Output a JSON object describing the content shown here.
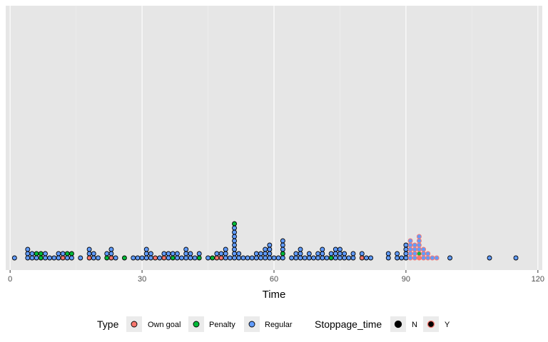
{
  "chart_data": {
    "type": "scatter",
    "subtype": "dotplot",
    "xlabel": "Time",
    "ylabel": "",
    "xlim": [
      -1,
      121
    ],
    "x_ticks": [
      0,
      30,
      60,
      90,
      120
    ],
    "grid": true,
    "theme_colors": {
      "panel_bg": "#e6e6e6",
      "grid_major": "#ffffff",
      "grid_minor": "#f2f2f2",
      "dot_stroke": "#000000",
      "stoppage_stroke": "#f8766d"
    },
    "legend_position": "bottom",
    "legends": [
      {
        "title": "Type",
        "entries": [
          {
            "label": "Own goal",
            "color": "#f8766d"
          },
          {
            "label": "Penalty",
            "color": "#00ba38"
          },
          {
            "label": "Regular",
            "color": "#619cff"
          }
        ]
      },
      {
        "title": "Stoppage_time",
        "entries": [
          {
            "label": "N",
            "fill": "#000000",
            "stroke": "#000000"
          },
          {
            "label": "Y",
            "fill": "#000000",
            "stroke": "#f8766d"
          }
        ]
      }
    ],
    "stacks": [
      {
        "x": 1,
        "dots": [
          "R"
        ]
      },
      {
        "x": 4,
        "dots": [
          "R",
          "R",
          "R"
        ]
      },
      {
        "x": 5,
        "dots": [
          "R",
          "R"
        ]
      },
      {
        "x": 6,
        "dots": [
          "R",
          "P"
        ]
      },
      {
        "x": 7,
        "dots": [
          "P",
          "P"
        ]
      },
      {
        "x": 8,
        "dots": [
          "R",
          "R"
        ]
      },
      {
        "x": 9,
        "dots": [
          "R"
        ]
      },
      {
        "x": 10,
        "dots": [
          "R"
        ]
      },
      {
        "x": 11,
        "dots": [
          "R",
          "R"
        ]
      },
      {
        "x": 12,
        "dots": [
          "O",
          "R"
        ]
      },
      {
        "x": 13,
        "dots": [
          "R",
          "P"
        ]
      },
      {
        "x": 14,
        "dots": [
          "R",
          "P"
        ]
      },
      {
        "x": 16,
        "dots": [
          "R"
        ]
      },
      {
        "x": 18,
        "dots": [
          "O",
          "R",
          "R"
        ]
      },
      {
        "x": 19,
        "dots": [
          "R",
          "R"
        ]
      },
      {
        "x": 20,
        "dots": [
          "R"
        ]
      },
      {
        "x": 22,
        "dots": [
          "P",
          "R"
        ]
      },
      {
        "x": 23,
        "dots": [
          "O",
          "R",
          "R"
        ]
      },
      {
        "x": 24,
        "dots": [
          "R"
        ]
      },
      {
        "x": 26,
        "dots": [
          "P"
        ]
      },
      {
        "x": 28,
        "dots": [
          "R"
        ]
      },
      {
        "x": 29,
        "dots": [
          "R"
        ]
      },
      {
        "x": 30,
        "dots": [
          "R"
        ]
      },
      {
        "x": 31,
        "dots": [
          "R",
          "R",
          "R"
        ]
      },
      {
        "x": 32,
        "dots": [
          "R",
          "R"
        ]
      },
      {
        "x": 33,
        "dots": [
          "O"
        ]
      },
      {
        "x": 34,
        "dots": [
          "R"
        ]
      },
      {
        "x": 35,
        "dots": [
          "O",
          "R"
        ]
      },
      {
        "x": 36,
        "dots": [
          "R",
          "R"
        ]
      },
      {
        "x": 37,
        "dots": [
          "P",
          "R"
        ]
      },
      {
        "x": 38,
        "dots": [
          "R",
          "R"
        ]
      },
      {
        "x": 39,
        "dots": [
          "R"
        ]
      },
      {
        "x": 40,
        "dots": [
          "R",
          "R",
          "R"
        ]
      },
      {
        "x": 41,
        "dots": [
          "R",
          "R"
        ]
      },
      {
        "x": 42,
        "dots": [
          "R"
        ]
      },
      {
        "x": 43,
        "dots": [
          "P",
          "R"
        ]
      },
      {
        "x": 45,
        "dots": [
          "R"
        ]
      },
      {
        "x": 46,
        "dots": [
          "P"
        ]
      },
      {
        "x": 47,
        "dots": [
          "O",
          "R"
        ]
      },
      {
        "x": 48,
        "dots": [
          "O",
          "R"
        ]
      },
      {
        "x": 49,
        "dots": [
          "R",
          "R",
          "R"
        ]
      },
      {
        "x": 50,
        "dots": [
          "R"
        ]
      },
      {
        "x": 51,
        "dots": [
          "R",
          "R",
          "R",
          "R",
          "R",
          "R",
          "R",
          "R",
          "P"
        ]
      },
      {
        "x": 52,
        "dots": [
          "R",
          "R"
        ]
      },
      {
        "x": 53,
        "dots": [
          "R"
        ]
      },
      {
        "x": 54,
        "dots": [
          "R"
        ]
      },
      {
        "x": 55,
        "dots": [
          "R"
        ]
      },
      {
        "x": 56,
        "dots": [
          "R",
          "R"
        ]
      },
      {
        "x": 57,
        "dots": [
          "R",
          "R"
        ]
      },
      {
        "x": 58,
        "dots": [
          "R",
          "R",
          "R"
        ]
      },
      {
        "x": 59,
        "dots": [
          "R",
          "R",
          "R",
          "R"
        ]
      },
      {
        "x": 60,
        "dots": [
          "R"
        ]
      },
      {
        "x": 61,
        "dots": [
          "R"
        ]
      },
      {
        "x": 62,
        "dots": [
          "R",
          "P",
          "R",
          "R",
          "R"
        ]
      },
      {
        "x": 64,
        "dots": [
          "R"
        ]
      },
      {
        "x": 65,
        "dots": [
          "R",
          "R"
        ]
      },
      {
        "x": 66,
        "dots": [
          "R",
          "R",
          "R"
        ]
      },
      {
        "x": 67,
        "dots": [
          "R"
        ]
      },
      {
        "x": 68,
        "dots": [
          "R",
          "R"
        ]
      },
      {
        "x": 69,
        "dots": [
          "R"
        ]
      },
      {
        "x": 70,
        "dots": [
          "R",
          "R"
        ]
      },
      {
        "x": 71,
        "dots": [
          "R",
          "R",
          "R"
        ]
      },
      {
        "x": 72,
        "dots": [
          "R"
        ]
      },
      {
        "x": 73,
        "dots": [
          "P",
          "R"
        ]
      },
      {
        "x": 74,
        "dots": [
          "R",
          "R",
          "R"
        ]
      },
      {
        "x": 75,
        "dots": [
          "R",
          "R",
          "R"
        ]
      },
      {
        "x": 76,
        "dots": [
          "R",
          "R"
        ]
      },
      {
        "x": 77,
        "dots": [
          "R"
        ]
      },
      {
        "x": 78,
        "dots": [
          "R",
          "R"
        ]
      },
      {
        "x": 80,
        "dots": [
          "O",
          "R"
        ]
      },
      {
        "x": 81,
        "dots": [
          "R"
        ]
      },
      {
        "x": 82,
        "dots": [
          "R"
        ]
      },
      {
        "x": 86,
        "dots": [
          "R",
          "R"
        ]
      },
      {
        "x": 88,
        "dots": [
          "R",
          "R"
        ]
      },
      {
        "x": 89,
        "dots": [
          "R"
        ]
      },
      {
        "x": 90,
        "dots": [
          "R",
          "R",
          "R",
          "R"
        ]
      },
      {
        "x": 91,
        "dots": [
          "R",
          "R",
          "R",
          "R",
          "R"
        ],
        "stoppage": true
      },
      {
        "x": 92,
        "dots": [
          "R",
          "R",
          "R",
          "R"
        ],
        "stoppage": true
      },
      {
        "x": 93,
        "dots": [
          "O",
          "P",
          "R",
          "R",
          "R",
          "R"
        ],
        "stoppage": true
      },
      {
        "x": 94,
        "dots": [
          "R",
          "R",
          "R"
        ],
        "stoppage": true
      },
      {
        "x": 95,
        "dots": [
          "R",
          "R"
        ],
        "stoppage": true
      },
      {
        "x": 96,
        "dots": [
          "R"
        ],
        "stoppage": true
      },
      {
        "x": 97,
        "dots": [
          "R"
        ],
        "stoppage": true
      },
      {
        "x": 100,
        "dots": [
          "R"
        ]
      },
      {
        "x": 109,
        "dots": [
          "R"
        ]
      },
      {
        "x": 115,
        "dots": [
          "R"
        ]
      }
    ]
  }
}
